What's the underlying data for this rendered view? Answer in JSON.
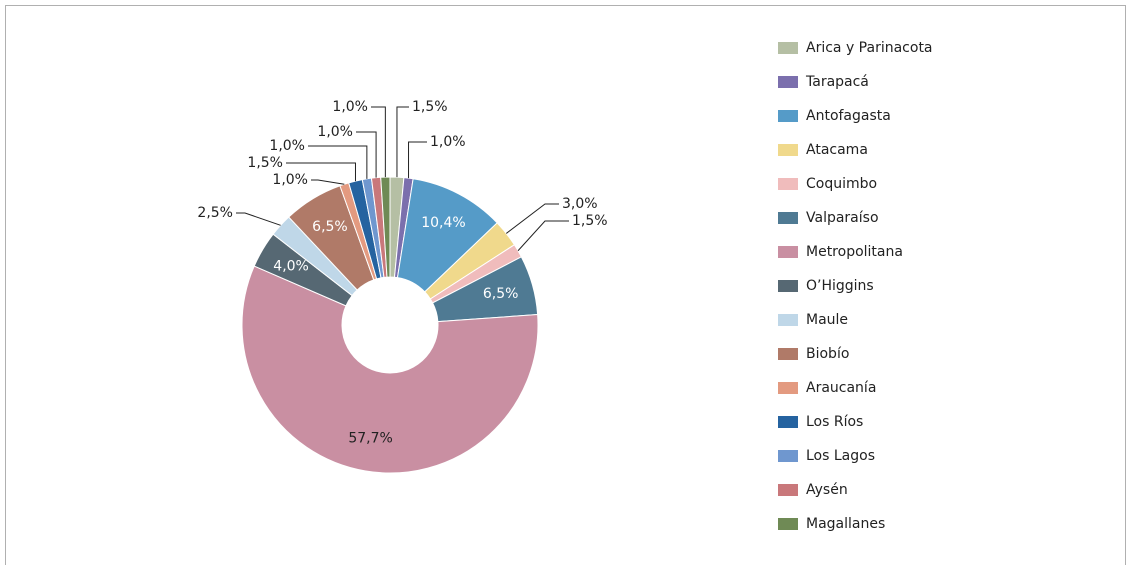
{
  "chart_data": {
    "type": "donut",
    "categories": [
      "Arica y Parinacota",
      "Tarapacá",
      "Antofagasta",
      "Atacama",
      "Coquimbo",
      "Valparaíso",
      "Metropolitana",
      "O’Higgins",
      "Maule",
      "Biobío",
      "Araucanía",
      "Los Ríos",
      "Los Lagos",
      "Aysén",
      "Magallanes"
    ],
    "values": [
      1.5,
      1.0,
      10.4,
      3.0,
      1.5,
      6.5,
      57.7,
      4.0,
      2.5,
      6.5,
      1.0,
      1.5,
      1.0,
      1.0,
      1.0
    ],
    "value_labels": [
      "1,5%",
      "1,0%",
      "10,4%",
      "3,0%",
      "1,5%",
      "6,5%",
      "57,7%",
      "4,0%",
      "2,5%",
      "6,5%",
      "1,0%",
      "1,5%",
      "1,0%",
      "1,0%",
      "1,0%"
    ],
    "colors": [
      "#b5bfa4",
      "#7b6fad",
      "#559bc8",
      "#f0d98c",
      "#f0bcbc",
      "#4f7a93",
      "#c98fa2",
      "#566873",
      "#bfd7e8",
      "#b07a68",
      "#e39a80",
      "#2563a0",
      "#6f97cf",
      "#c9787b",
      "#6f8a55"
    ],
    "legend": "right"
  }
}
